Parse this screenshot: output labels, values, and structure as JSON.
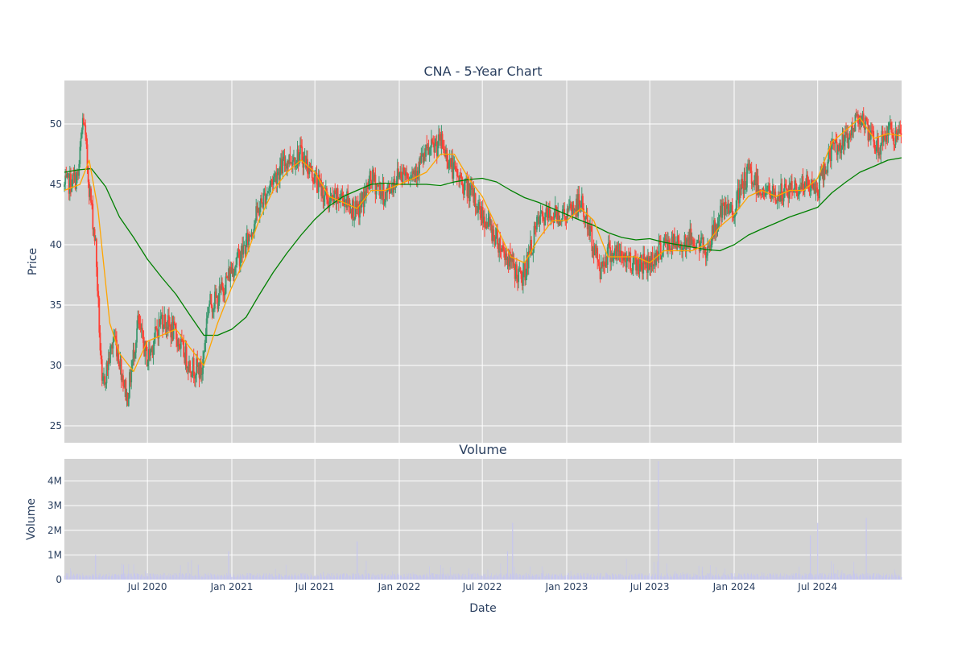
{
  "chart_data": {
    "type": "candlestick",
    "title": "CNA - 5-Year Chart",
    "xlabel": "Date",
    "x_tick_labels": [
      "Jul 2020",
      "Jan 2021",
      "Jul 2021",
      "Jan 2022",
      "Jul 2022",
      "Jan 2023",
      "Jul 2023",
      "Jan 2024",
      "Jul 2024"
    ],
    "x_tick_dates": [
      "2020-07-01",
      "2021-01-01",
      "2021-07-01",
      "2022-01-01",
      "2022-07-01",
      "2023-01-01",
      "2023-07-01",
      "2024-01-01",
      "2024-07-01"
    ],
    "xlim": [
      "2020-01-02",
      "2024-12-31"
    ],
    "grid": true,
    "colors": {
      "plot_bg": "#d3d3d3",
      "grid": "#ffffff",
      "up": "#3d9970",
      "down": "#ff4136",
      "ma_short": "#ffa500",
      "ma_long": "#008000",
      "volume": "#c6c6ee"
    },
    "price_panel": {
      "ylabel": "Price",
      "ylim": [
        23.6,
        53.6
      ],
      "yticks": [
        25,
        30,
        35,
        40,
        45,
        50
      ],
      "ytick_labels": [
        "25",
        "30",
        "35",
        "40",
        "45",
        "50"
      ],
      "close_path": [
        [
          "2020-01-02",
          44.8
        ],
        [
          "2020-02-01",
          45.6
        ],
        [
          "2020-02-12",
          50.8
        ],
        [
          "2020-02-24",
          45.2
        ],
        [
          "2020-03-10",
          40.0
        ],
        [
          "2020-03-24",
          28.0
        ],
        [
          "2020-04-20",
          32.5
        ],
        [
          "2020-05-18",
          27.2
        ],
        [
          "2020-06-10",
          33.5
        ],
        [
          "2020-07-01",
          30.5
        ],
        [
          "2020-08-01",
          34.0
        ],
        [
          "2020-09-01",
          32.5
        ],
        [
          "2020-10-01",
          30.0
        ],
        [
          "2020-10-28",
          29.5
        ],
        [
          "2020-11-10",
          35.0
        ],
        [
          "2020-12-01",
          35.5
        ],
        [
          "2021-01-01",
          38.0
        ],
        [
          "2021-02-01",
          40.0
        ],
        [
          "2021-03-01",
          43.0
        ],
        [
          "2021-04-01",
          45.5
        ],
        [
          "2021-05-01",
          47.0
        ],
        [
          "2021-06-01",
          47.5
        ],
        [
          "2021-07-01",
          45.5
        ],
        [
          "2021-08-01",
          43.5
        ],
        [
          "2021-09-01",
          44.0
        ],
        [
          "2021-10-01",
          42.5
        ],
        [
          "2021-11-01",
          45.5
        ],
        [
          "2021-12-01",
          44.0
        ],
        [
          "2022-01-01",
          46.0
        ],
        [
          "2022-02-01",
          46.0
        ],
        [
          "2022-03-01",
          47.5
        ],
        [
          "2022-04-01",
          48.5
        ],
        [
          "2022-05-01",
          46.0
        ],
        [
          "2022-06-01",
          44.5
        ],
        [
          "2022-07-01",
          42.5
        ],
        [
          "2022-08-01",
          40.5
        ],
        [
          "2022-09-01",
          38.5
        ],
        [
          "2022-09-25",
          37.0
        ],
        [
          "2022-11-01",
          42.0
        ],
        [
          "2022-12-01",
          42.5
        ],
        [
          "2023-01-01",
          42.5
        ],
        [
          "2023-02-01",
          43.5
        ],
        [
          "2023-03-15",
          38.0
        ],
        [
          "2023-04-01",
          39.5
        ],
        [
          "2023-05-01",
          39.0
        ],
        [
          "2023-06-01",
          38.5
        ],
        [
          "2023-07-01",
          38.5
        ],
        [
          "2023-08-01",
          40.0
        ],
        [
          "2023-09-01",
          40.0
        ],
        [
          "2023-10-01",
          40.5
        ],
        [
          "2023-11-01",
          39.5
        ],
        [
          "2023-12-01",
          42.5
        ],
        [
          "2024-01-01",
          43.0
        ],
        [
          "2024-02-01",
          46.0
        ],
        [
          "2024-03-01",
          44.5
        ],
        [
          "2024-04-01",
          44.0
        ],
        [
          "2024-05-01",
          44.5
        ],
        [
          "2024-06-01",
          45.0
        ],
        [
          "2024-07-01",
          44.5
        ],
        [
          "2024-08-01",
          48.0
        ],
        [
          "2024-09-01",
          48.5
        ],
        [
          "2024-10-01",
          51.0
        ],
        [
          "2024-10-20",
          49.0
        ],
        [
          "2024-11-10",
          48.0
        ],
        [
          "2024-12-01",
          49.5
        ],
        [
          "2024-12-31",
          48.5
        ]
      ],
      "ma_short_path": [
        [
          "2020-01-02",
          44.5
        ],
        [
          "2020-02-05",
          45.0
        ],
        [
          "2020-02-25",
          47.0
        ],
        [
          "2020-03-15",
          43.0
        ],
        [
          "2020-04-10",
          33.5
        ],
        [
          "2020-05-01",
          31.0
        ],
        [
          "2020-06-01",
          29.5
        ],
        [
          "2020-07-01",
          32.0
        ],
        [
          "2020-08-01",
          32.5
        ],
        [
          "2020-09-01",
          33.0
        ],
        [
          "2020-10-01",
          31.5
        ],
        [
          "2020-11-01",
          30.0
        ],
        [
          "2020-12-01",
          33.5
        ],
        [
          "2021-01-01",
          36.5
        ],
        [
          "2021-02-01",
          39.0
        ],
        [
          "2021-03-01",
          42.0
        ],
        [
          "2021-04-01",
          44.5
        ],
        [
          "2021-05-01",
          46.0
        ],
        [
          "2021-06-01",
          47.0
        ],
        [
          "2021-07-01",
          46.0
        ],
        [
          "2021-08-01",
          44.0
        ],
        [
          "2021-09-01",
          43.5
        ],
        [
          "2021-10-01",
          43.0
        ],
        [
          "2021-11-01",
          44.5
        ],
        [
          "2021-12-01",
          44.5
        ],
        [
          "2022-01-01",
          45.0
        ],
        [
          "2022-02-01",
          45.5
        ],
        [
          "2022-03-01",
          46.0
        ],
        [
          "2022-04-01",
          47.5
        ],
        [
          "2022-05-01",
          47.5
        ],
        [
          "2022-06-01",
          45.5
        ],
        [
          "2022-07-01",
          44.0
        ],
        [
          "2022-08-01",
          41.5
        ],
        [
          "2022-09-01",
          39.0
        ],
        [
          "2022-10-01",
          38.5
        ],
        [
          "2022-11-01",
          40.5
        ],
        [
          "2022-12-01",
          42.0
        ],
        [
          "2023-01-01",
          42.0
        ],
        [
          "2023-02-01",
          43.0
        ],
        [
          "2023-03-01",
          42.0
        ],
        [
          "2023-04-01",
          39.0
        ],
        [
          "2023-05-01",
          39.0
        ],
        [
          "2023-06-01",
          39.0
        ],
        [
          "2023-07-01",
          38.5
        ],
        [
          "2023-08-01",
          39.5
        ],
        [
          "2023-09-01",
          39.5
        ],
        [
          "2023-10-01",
          39.5
        ],
        [
          "2023-11-01",
          40.0
        ],
        [
          "2023-12-01",
          41.5
        ],
        [
          "2024-01-01",
          42.5
        ],
        [
          "2024-02-01",
          44.0
        ],
        [
          "2024-03-01",
          44.5
        ],
        [
          "2024-04-01",
          44.0
        ],
        [
          "2024-05-01",
          44.5
        ],
        [
          "2024-06-01",
          44.5
        ],
        [
          "2024-07-01",
          45.5
        ],
        [
          "2024-08-01",
          48.5
        ],
        [
          "2024-09-01",
          49.5
        ],
        [
          "2024-10-01",
          50.5
        ],
        [
          "2024-11-01",
          48.8
        ],
        [
          "2024-12-01",
          49.2
        ],
        [
          "2024-12-31",
          49.0
        ]
      ],
      "ma_long_path": [
        [
          "2020-01-02",
          46.0
        ],
        [
          "2020-02-01",
          46.2
        ],
        [
          "2020-03-01",
          46.3
        ],
        [
          "2020-04-01",
          44.8
        ],
        [
          "2020-05-01",
          42.3
        ],
        [
          "2020-06-01",
          40.6
        ],
        [
          "2020-07-01",
          38.8
        ],
        [
          "2020-08-01",
          37.3
        ],
        [
          "2020-09-01",
          35.9
        ],
        [
          "2020-10-01",
          34.2
        ],
        [
          "2020-11-01",
          32.5
        ],
        [
          "2020-12-01",
          32.5
        ],
        [
          "2021-01-01",
          33.0
        ],
        [
          "2021-02-01",
          34.0
        ],
        [
          "2021-03-01",
          35.8
        ],
        [
          "2021-04-01",
          37.7
        ],
        [
          "2021-05-01",
          39.3
        ],
        [
          "2021-06-01",
          40.8
        ],
        [
          "2021-07-01",
          42.1
        ],
        [
          "2021-08-01",
          43.2
        ],
        [
          "2021-09-01",
          44.0
        ],
        [
          "2021-10-01",
          44.5
        ],
        [
          "2021-11-01",
          45.0
        ],
        [
          "2021-12-01",
          45.1
        ],
        [
          "2022-01-01",
          45.0
        ],
        [
          "2022-02-01",
          45.0
        ],
        [
          "2022-03-01",
          45.0
        ],
        [
          "2022-04-01",
          44.9
        ],
        [
          "2022-05-01",
          45.2
        ],
        [
          "2022-06-01",
          45.4
        ],
        [
          "2022-07-01",
          45.5
        ],
        [
          "2022-08-01",
          45.2
        ],
        [
          "2022-09-01",
          44.5
        ],
        [
          "2022-10-01",
          43.9
        ],
        [
          "2022-11-01",
          43.5
        ],
        [
          "2022-12-01",
          43.0
        ],
        [
          "2023-01-01",
          42.5
        ],
        [
          "2023-02-01",
          42.0
        ],
        [
          "2023-03-01",
          41.6
        ],
        [
          "2023-04-01",
          41.0
        ],
        [
          "2023-05-01",
          40.6
        ],
        [
          "2023-06-01",
          40.4
        ],
        [
          "2023-07-01",
          40.5
        ],
        [
          "2023-08-01",
          40.2
        ],
        [
          "2023-09-01",
          40.0
        ],
        [
          "2023-10-01",
          39.8
        ],
        [
          "2023-11-01",
          39.6
        ],
        [
          "2023-12-01",
          39.5
        ],
        [
          "2024-01-01",
          40.0
        ],
        [
          "2024-02-01",
          40.8
        ],
        [
          "2024-03-01",
          41.3
        ],
        [
          "2024-04-01",
          41.8
        ],
        [
          "2024-05-01",
          42.3
        ],
        [
          "2024-06-01",
          42.7
        ],
        [
          "2024-07-01",
          43.1
        ],
        [
          "2024-08-01",
          44.3
        ],
        [
          "2024-09-01",
          45.2
        ],
        [
          "2024-10-01",
          46.0
        ],
        [
          "2024-11-01",
          46.5
        ],
        [
          "2024-12-01",
          47.0
        ],
        [
          "2024-12-31",
          47.2
        ]
      ]
    },
    "volume_panel": {
      "title": "Volume",
      "ylabel": "Volume",
      "ylim": [
        0,
        4900000
      ],
      "yticks": [
        0,
        1000000,
        2000000,
        3000000,
        4000000
      ],
      "ytick_labels": [
        "0",
        "1M",
        "2M",
        "3M",
        "4M"
      ],
      "baseline_volume": 200000,
      "spikes": [
        [
          "2020-03-10",
          1000000
        ],
        [
          "2020-05-10",
          600000
        ],
        [
          "2020-10-20",
          600000
        ],
        [
          "2020-12-25",
          1150000
        ],
        [
          "2021-10-01",
          1550000
        ],
        [
          "2022-08-25",
          1150000
        ],
        [
          "2022-09-05",
          2300000
        ],
        [
          "2023-07-20",
          4800000
        ],
        [
          "2024-06-15",
          1800000
        ],
        [
          "2024-07-01",
          2300000
        ],
        [
          "2024-10-15",
          2500000
        ]
      ]
    }
  }
}
